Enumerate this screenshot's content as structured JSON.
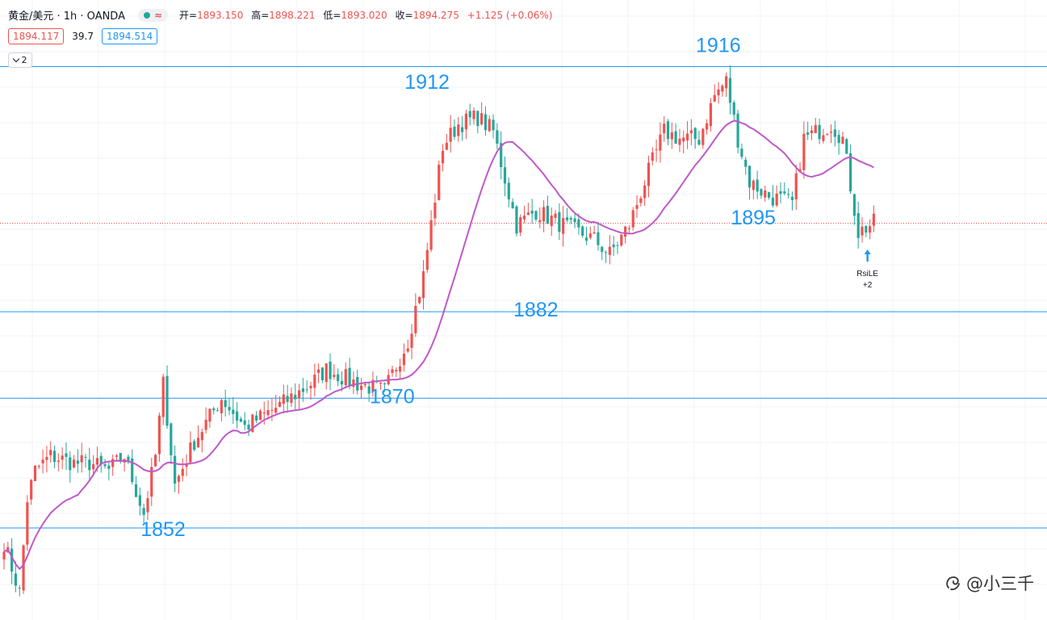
{
  "header": {
    "symbol": "黄金/美元 · 1h · OANDA",
    "open_label": "开=",
    "open": "1893.150",
    "high_label": "高=",
    "high": "1898.221",
    "low_label": "低=",
    "low": "1893.020",
    "close_label": "收=",
    "close": "1894.275",
    "change": "+1.125 (+0.06%)"
  },
  "quote": {
    "bid": "1894.117",
    "spread": "39.7",
    "ask": "1894.514"
  },
  "collapse_count": "2",
  "watermark": "@小三千",
  "colors": {
    "up": "#ef5350",
    "down": "#26a69a",
    "level": "#2196f3",
    "ma": "#c059c8",
    "current": "#ef5350"
  },
  "chart_data": {
    "type": "candlestick",
    "horizontal_levels": [
      1916,
      1895,
      1882,
      1870,
      1852
    ],
    "current_price": 1894.275,
    "annotations": [
      {
        "text": "1916",
        "x_bar": 184,
        "y": 1916
      },
      {
        "text": "1912",
        "x_bar": 109,
        "y": 1912
      },
      {
        "text": "1895",
        "x_bar": 193,
        "y": 1895
      },
      {
        "text": "1882",
        "x_bar": 137,
        "y": 1882
      },
      {
        "text": "1870",
        "x_bar": 100,
        "y": 1870
      },
      {
        "text": "1852",
        "x_bar": 41,
        "y": 1852
      }
    ],
    "signal": {
      "text": "RsiLE",
      "count": "+2",
      "x_bar": 223
    },
    "ma_name": "",
    "ohlc_keypoints": [
      [
        0,
        1850
      ],
      [
        4,
        1843
      ],
      [
        6,
        1856
      ],
      [
        8,
        1860
      ],
      [
        12,
        1862
      ],
      [
        18,
        1861
      ],
      [
        22,
        1861
      ],
      [
        27,
        1860
      ],
      [
        31,
        1862
      ],
      [
        36,
        1854
      ],
      [
        39,
        1862
      ],
      [
        41,
        1872
      ],
      [
        44,
        1858
      ],
      [
        49,
        1864
      ],
      [
        56,
        1870
      ],
      [
        62,
        1866
      ],
      [
        71,
        1869
      ],
      [
        79,
        1872
      ],
      [
        83,
        1874
      ],
      [
        91,
        1872
      ],
      [
        98,
        1871
      ],
      [
        104,
        1878
      ],
      [
        108,
        1887
      ],
      [
        113,
        1905
      ],
      [
        117,
        1908
      ],
      [
        122,
        1909
      ],
      [
        126,
        1907
      ],
      [
        132,
        1894
      ],
      [
        137,
        1896
      ],
      [
        144,
        1894
      ],
      [
        152,
        1892
      ],
      [
        156,
        1890
      ],
      [
        161,
        1894
      ],
      [
        165,
        1900
      ],
      [
        170,
        1907
      ],
      [
        174,
        1906
      ],
      [
        179,
        1906
      ],
      [
        183,
        1912
      ],
      [
        186,
        1914
      ],
      [
        189,
        1906
      ],
      [
        192,
        1900
      ],
      [
        197,
        1898
      ],
      [
        203,
        1897
      ],
      [
        206,
        1906
      ],
      [
        213,
        1908
      ],
      [
        216,
        1906
      ],
      [
        220,
        1893
      ],
      [
        224,
        1894.3
      ]
    ],
    "bars": 225
  }
}
